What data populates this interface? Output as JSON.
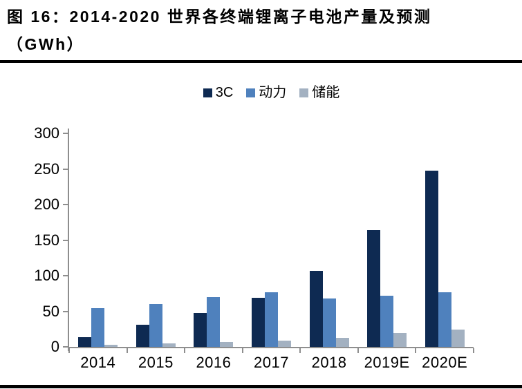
{
  "figure": {
    "title_line1": "图 16：2014-2020 世界各终端锂离子电池产量及预测",
    "title_line2": "（GWh）"
  },
  "chart_data": {
    "type": "bar",
    "title": "2014-2020 世界各终端锂离子电池产量及预测",
    "unit": "GWh",
    "categories": [
      "2014",
      "2015",
      "2016",
      "2017",
      "2018",
      "2019E",
      "2020E"
    ],
    "series": [
      {
        "name": "3C",
        "color": "#0e2a52",
        "values": [
          14,
          31,
          48,
          69,
          107,
          164,
          248
        ]
      },
      {
        "name": "动力",
        "color": "#4f81bd",
        "values": [
          54,
          60,
          70,
          77,
          68,
          72,
          77
        ]
      },
      {
        "name": "储能",
        "color": "#a3b1c1",
        "values": [
          3,
          5,
          7,
          9,
          13,
          19,
          24
        ]
      }
    ],
    "ylim": [
      0,
      300
    ],
    "yticks": [
      0,
      50,
      100,
      150,
      200,
      250,
      300
    ],
    "grid": false,
    "legend_position": "top",
    "xlabel": "",
    "ylabel": ""
  },
  "colors": {
    "axis": "#8e8e8e",
    "rule": "#000000",
    "text": "#000000"
  }
}
